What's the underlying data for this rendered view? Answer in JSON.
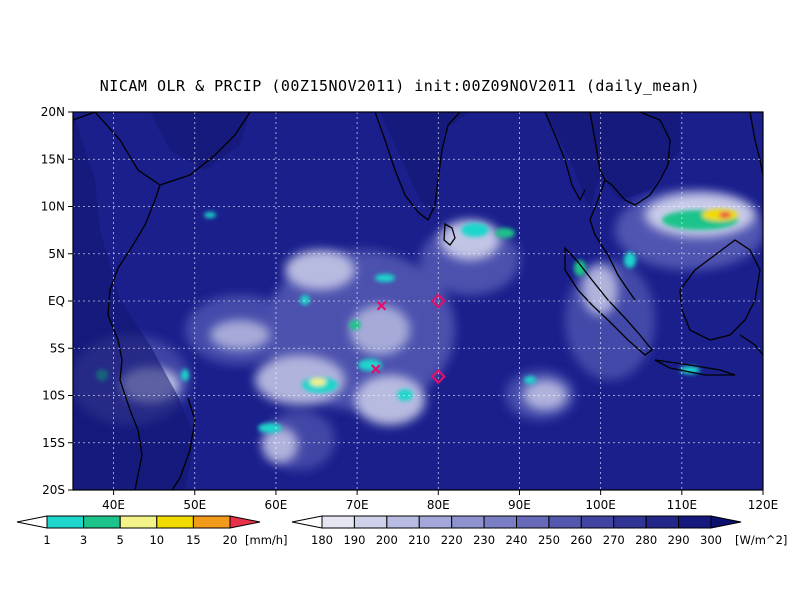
{
  "title": "NICAM OLR & PRCIP (00Z15NOV2011) init:00Z09NOV2011 (daily_mean)",
  "map": {
    "lon_range": [
      35,
      120
    ],
    "lat_range": [
      -20,
      20
    ],
    "lat_labels": [
      "20N",
      "15N",
      "10N",
      "5N",
      "EQ",
      "5S",
      "10S",
      "15S",
      "20S"
    ],
    "lon_labels": [
      "40E",
      "50E",
      "60E",
      "70E",
      "80E",
      "90E",
      "100E",
      "110E",
      "120E"
    ],
    "grid": "dotted",
    "ocean_color": "#1a1f8c",
    "markers": [
      {
        "type": "x",
        "lon": 73,
        "lat": -0.5,
        "color": "#e0106b"
      },
      {
        "type": "x",
        "lon": 72.3,
        "lat": -7.2,
        "color": "#e0106b"
      },
      {
        "type": "diamond",
        "lon": 80,
        "lat": 0,
        "color": "#e0106b"
      },
      {
        "type": "diamond",
        "lon": 80,
        "lat": -8,
        "color": "#e0106b"
      }
    ]
  },
  "precip_colorbar": {
    "unit": "[mm/h]",
    "labels": [
      "1",
      "3",
      "5",
      "10",
      "15",
      "20"
    ],
    "colors": [
      "#ffffff",
      "#1fd6cc",
      "#1cc48b",
      "#f3f38a",
      "#f2dc00",
      "#f29a1a",
      "#e8304a"
    ]
  },
  "olr_colorbar": {
    "unit": "[W/m^2]",
    "labels": [
      "180",
      "190",
      "200",
      "210",
      "220",
      "230",
      "240",
      "250",
      "260",
      "270",
      "280",
      "290",
      "300"
    ],
    "colors": [
      "#ffffff",
      "#e5e6f2",
      "#cfd1ea",
      "#b9bce2",
      "#a3a7d9",
      "#8e92cf",
      "#7a7ec4",
      "#666ab9",
      "#5357ad",
      "#4145a1",
      "#303595",
      "#222689",
      "#15197d",
      "#0b0f6e"
    ]
  }
}
